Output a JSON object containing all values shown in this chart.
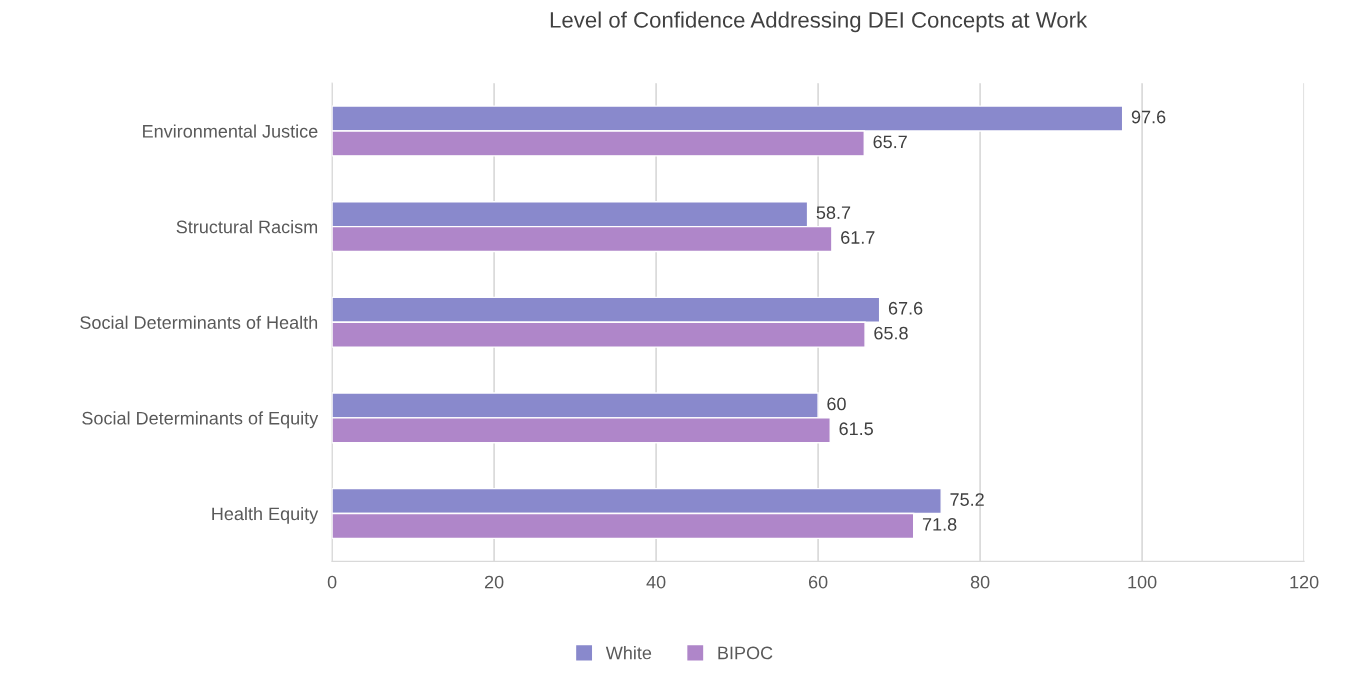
{
  "chart_data": {
    "type": "bar",
    "orientation": "horizontal",
    "title": "Level of Confidence Addressing DEI Concepts at Work",
    "categories": [
      "Environmental Justice",
      "Structural Racism",
      "Social Determinants of Health",
      "Social Determinants of Equity",
      "Health Equity"
    ],
    "series": [
      {
        "name": "White",
        "color": "#8989cc",
        "values": [
          97.6,
          58.7,
          67.6,
          60,
          75.2
        ]
      },
      {
        "name": "BIPOC",
        "color": "#af86c9",
        "values": [
          65.7,
          61.7,
          65.8,
          61.5,
          71.8
        ]
      }
    ],
    "xlim": [
      0,
      120
    ],
    "xticks": [
      0,
      20,
      40,
      60,
      80,
      100,
      120
    ],
    "grid": "x",
    "legend": "bottom",
    "data_labels": true
  }
}
